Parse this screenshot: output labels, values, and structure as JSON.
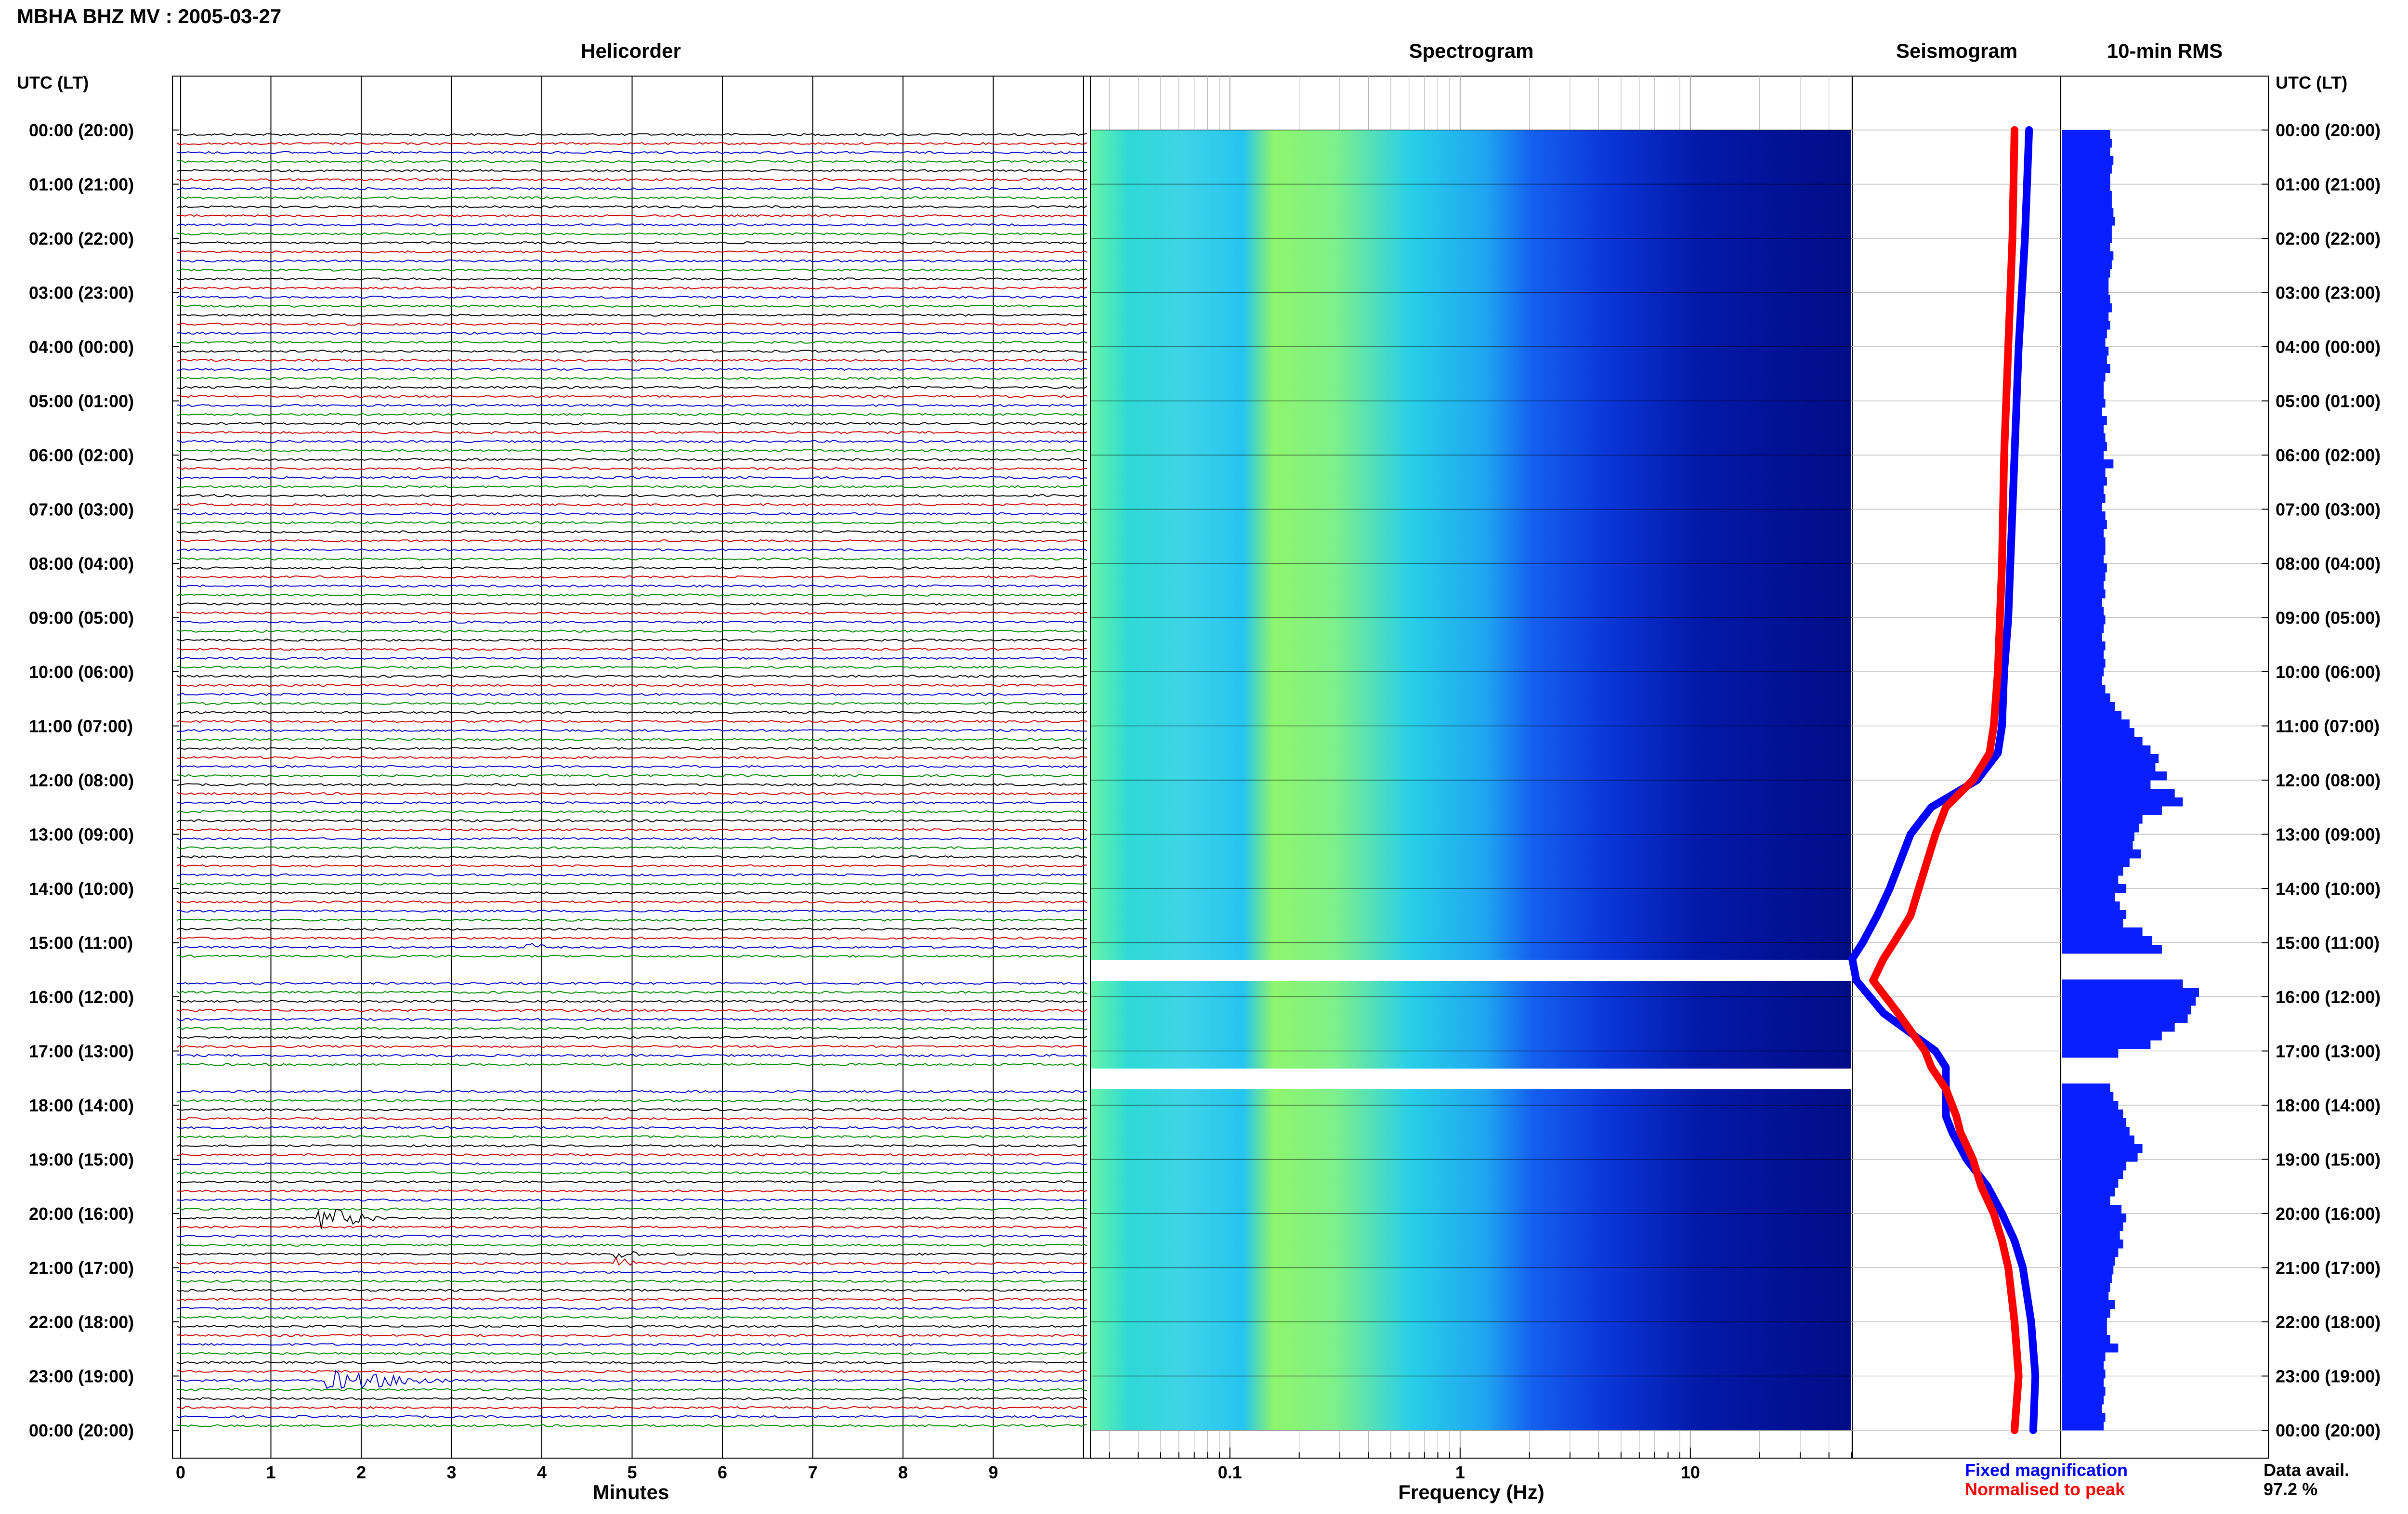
{
  "header": {
    "title": "MBHA BHZ MV : 2005-03-27",
    "utc_label_left": "UTC (LT)",
    "utc_label_right": "UTC (LT)"
  },
  "panels": {
    "helicorder": "Helicorder",
    "spectrogram": "Spectrogram",
    "seismogram": "Seismogram",
    "rms": "10-min RMS"
  },
  "time_labels": [
    "00:00 (20:00)",
    "01:00 (21:00)",
    "02:00 (22:00)",
    "03:00 (23:00)",
    "04:00 (00:00)",
    "05:00 (01:00)",
    "06:00 (02:00)",
    "07:00 (03:00)",
    "08:00 (04:00)",
    "09:00 (05:00)",
    "10:00 (06:00)",
    "11:00 (07:00)",
    "12:00 (08:00)",
    "13:00 (09:00)",
    "14:00 (10:00)",
    "15:00 (11:00)",
    "16:00 (12:00)",
    "17:00 (13:00)",
    "18:00 (14:00)",
    "19:00 (15:00)",
    "20:00 (16:00)",
    "21:00 (17:00)",
    "22:00 (18:00)",
    "23:00 (19:00)",
    "00:00 (20:00)"
  ],
  "helicorder_axis": {
    "xlabel": "Minutes",
    "ticks": [
      "0",
      "1",
      "2",
      "3",
      "4",
      "5",
      "6",
      "7",
      "8",
      "9"
    ],
    "trace_colors": [
      "#000000",
      "#cc0000",
      "#0000cc",
      "#008800"
    ]
  },
  "spectrogram_axis": {
    "xlabel": "Frequency (Hz)",
    "ticks": [
      "0.1",
      "1",
      "10"
    ],
    "xlim": [
      0.025,
      50
    ],
    "scale": "log"
  },
  "legend": {
    "fixed": "Fixed magnification",
    "normalised": "Normalised to peak",
    "fixed_color": "#0000ff",
    "normalised_color": "#ff0000"
  },
  "availability": {
    "label": "Data avail.",
    "value": "97.2 %"
  },
  "chart_data": {
    "type": "bar",
    "title": "10-min RMS",
    "xlabel": "",
    "ylabel": "UTC (LT)",
    "time_range_hours": [
      0,
      24
    ],
    "data_gaps_hours": [
      [
        15.33,
        15.67
      ],
      [
        17.33,
        17.67
      ]
    ],
    "rms_values": [
      0.3,
      0.31,
      0.3,
      0.32,
      0.31,
      0.3,
      0.3,
      0.31,
      0.31,
      0.32,
      0.33,
      0.31,
      0.31,
      0.3,
      0.32,
      0.31,
      0.3,
      0.29,
      0.29,
      0.3,
      0.31,
      0.29,
      0.3,
      0.28,
      0.27,
      0.29,
      0.28,
      0.3,
      0.27,
      0.26,
      0.26,
      0.27,
      0.25,
      0.28,
      0.26,
      0.27,
      0.28,
      0.26,
      0.32,
      0.27,
      0.28,
      0.26,
      0.27,
      0.25,
      0.27,
      0.28,
      0.26,
      0.27,
      0.27,
      0.26,
      0.28,
      0.27,
      0.26,
      0.27,
      0.25,
      0.26,
      0.27,
      0.26,
      0.25,
      0.27,
      0.26,
      0.27,
      0.26,
      0.25,
      0.27,
      0.3,
      0.33,
      0.37,
      0.42,
      0.45,
      0.5,
      0.55,
      0.6,
      0.58,
      0.65,
      0.55,
      0.7,
      0.75,
      0.62,
      0.5,
      0.48,
      0.45,
      0.44,
      0.49,
      0.42,
      0.38,
      0.35,
      0.4,
      0.33,
      0.36,
      0.4,
      0.38,
      0.5,
      0.56,
      0.62,
      0.0,
      0.0,
      0.0,
      0.75,
      0.85,
      0.83,
      0.8,
      0.78,
      0.7,
      0.62,
      0.55,
      0.35,
      0.0,
      0.0,
      0.0,
      0.3,
      0.32,
      0.35,
      0.38,
      0.4,
      0.42,
      0.45,
      0.5,
      0.47,
      0.4,
      0.38,
      0.35,
      0.33,
      0.3,
      0.37,
      0.4,
      0.38,
      0.36,
      0.38,
      0.35,
      0.33,
      0.32,
      0.31,
      0.3,
      0.29,
      0.33,
      0.3,
      0.28,
      0.28,
      0.3,
      0.35,
      0.27,
      0.26,
      0.27,
      0.26,
      0.27,
      0.26,
      0.25,
      0.27,
      0.26
    ],
    "seismogram_fixed": [
      [
        0,
        0.15
      ],
      [
        2,
        0.17
      ],
      [
        4,
        0.2
      ],
      [
        6,
        0.22
      ],
      [
        8,
        0.24
      ],
      [
        9,
        0.25
      ],
      [
        10,
        0.27
      ],
      [
        11,
        0.28
      ],
      [
        11.5,
        0.3
      ],
      [
        12,
        0.4
      ],
      [
        12.5,
        0.62
      ],
      [
        13,
        0.72
      ],
      [
        14,
        0.82
      ],
      [
        14.5,
        0.88
      ],
      [
        15,
        0.95
      ],
      [
        15.3,
        1.0
      ],
      [
        15.7,
        0.98
      ],
      [
        16.3,
        0.85
      ],
      [
        17.0,
        0.6
      ],
      [
        17.3,
        0.55
      ],
      [
        17.7,
        0.55
      ],
      [
        18.2,
        0.55
      ],
      [
        18.5,
        0.52
      ],
      [
        19.0,
        0.45
      ],
      [
        19.5,
        0.35
      ],
      [
        20.0,
        0.28
      ],
      [
        20.5,
        0.22
      ],
      [
        21.0,
        0.18
      ],
      [
        22,
        0.14
      ],
      [
        23,
        0.12
      ],
      [
        24,
        0.13
      ]
    ],
    "seismogram_normalised": [
      [
        0,
        0.22
      ],
      [
        2,
        0.23
      ],
      [
        4,
        0.25
      ],
      [
        6,
        0.27
      ],
      [
        8,
        0.28
      ],
      [
        9,
        0.29
      ],
      [
        10,
        0.3
      ],
      [
        11,
        0.32
      ],
      [
        11.5,
        0.34
      ],
      [
        12,
        0.42
      ],
      [
        12.5,
        0.55
      ],
      [
        13,
        0.6
      ],
      [
        14,
        0.68
      ],
      [
        14.5,
        0.72
      ],
      [
        15,
        0.8
      ],
      [
        15.3,
        0.85
      ],
      [
        15.7,
        0.9
      ],
      [
        16.3,
        0.78
      ],
      [
        17.0,
        0.65
      ],
      [
        17.3,
        0.62
      ],
      [
        17.7,
        0.55
      ],
      [
        18.2,
        0.5
      ],
      [
        18.5,
        0.48
      ],
      [
        19.0,
        0.42
      ],
      [
        19.5,
        0.38
      ],
      [
        20.0,
        0.32
      ],
      [
        20.5,
        0.28
      ],
      [
        21.0,
        0.25
      ],
      [
        22,
        0.22
      ],
      [
        23,
        0.2
      ],
      [
        24,
        0.22
      ]
    ],
    "events": [
      {
        "hour": 15.0,
        "minute": 3.8,
        "color": "#008800",
        "amp": 1.2,
        "length": 0.3
      },
      {
        "hour": 20.0,
        "minute": 1.5,
        "color": "#000000",
        "amp": 3.0,
        "length": 0.8
      },
      {
        "hour": 20.75,
        "minute": 4.8,
        "color": "#cc0000",
        "amp": 1.5,
        "length": 0.3
      },
      {
        "hour": 23.0,
        "minute": 1.6,
        "color": "#0000cc",
        "amp": 2.5,
        "length": 1.5
      }
    ]
  }
}
